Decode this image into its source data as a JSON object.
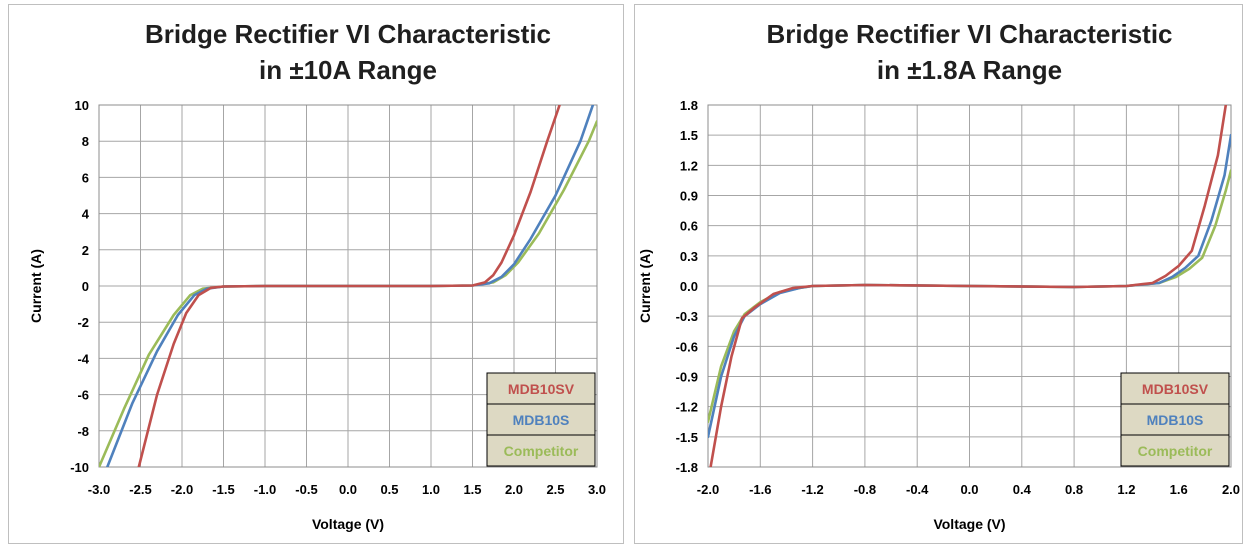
{
  "chart_data": [
    {
      "type": "line",
      "title": "Bridge Rectifier VI Characteristic",
      "subtitle": "in ±10A Range",
      "xlabel": "Voltage (V)",
      "ylabel": "Current (A)",
      "xlim": [
        -3.0,
        3.0
      ],
      "ylim": [
        -10,
        10
      ],
      "x_ticks": [
        -3.0,
        -2.5,
        -2.0,
        -1.5,
        -1.0,
        -0.5,
        0.0,
        0.5,
        1.0,
        1.5,
        2.0,
        2.5,
        3.0
      ],
      "y_ticks": [
        -10,
        -8,
        -6,
        -4,
        -2,
        0,
        2,
        4,
        6,
        8,
        10
      ],
      "x_tick_labels": [
        "-3.0",
        "-2.5",
        "-2.0",
        "-1.5",
        "-1.0",
        "-0.5",
        "0.0",
        "0.5",
        "1.0",
        "1.5",
        "2.0",
        "2.5",
        "3.0"
      ],
      "y_tick_labels": [
        "-10",
        "-8",
        "-6",
        "-4",
        "-2",
        "0",
        "2",
        "4",
        "6",
        "8",
        "10"
      ],
      "grid": true,
      "legend": "bottom-right",
      "series": [
        {
          "name": "MDB10SV",
          "color": "#c0504d",
          "x": [
            -2.52,
            -2.3,
            -2.1,
            -1.95,
            -1.8,
            -1.65,
            -1.5,
            -1.0,
            0.0,
            1.0,
            1.5,
            1.65,
            1.75,
            1.85,
            2.0,
            2.2,
            2.4,
            2.55
          ],
          "y": [
            -10,
            -6.0,
            -3.2,
            -1.5,
            -0.5,
            -0.1,
            -0.03,
            0,
            0,
            0,
            0.03,
            0.2,
            0.6,
            1.3,
            2.8,
            5.2,
            8.0,
            10
          ]
        },
        {
          "name": "MDB10S",
          "color": "#4f81bd",
          "x": [
            -2.9,
            -2.6,
            -2.3,
            -2.05,
            -1.85,
            -1.7,
            -1.5,
            -1.0,
            0.0,
            1.0,
            1.5,
            1.7,
            1.85,
            2.0,
            2.2,
            2.5,
            2.8,
            2.95
          ],
          "y": [
            -10,
            -6.5,
            -3.6,
            -1.6,
            -0.5,
            -0.15,
            -0.03,
            0,
            0,
            0,
            0.03,
            0.15,
            0.5,
            1.2,
            2.6,
            5.0,
            8.0,
            10
          ]
        },
        {
          "name": "Competitor",
          "color": "#9bbb59",
          "x": [
            -3.0,
            -2.7,
            -2.4,
            -2.1,
            -1.9,
            -1.75,
            -1.5,
            -1.0,
            0.0,
            1.0,
            1.5,
            1.75,
            1.9,
            2.05,
            2.3,
            2.6,
            2.9,
            3.0
          ],
          "y": [
            -10,
            -6.8,
            -3.8,
            -1.6,
            -0.5,
            -0.15,
            -0.03,
            0,
            0,
            0,
            0.03,
            0.2,
            0.6,
            1.3,
            2.9,
            5.3,
            8.0,
            9.1
          ]
        }
      ]
    },
    {
      "type": "line",
      "title": "Bridge Rectifier VI Characteristic",
      "subtitle": "in ±1.8A Range",
      "xlabel": "Voltage (V)",
      "ylabel": "Current (A)",
      "xlim": [
        -2.0,
        2.0
      ],
      "ylim": [
        -1.8,
        1.8
      ],
      "x_ticks": [
        -2.0,
        -1.6,
        -1.2,
        -0.8,
        -0.4,
        0.0,
        0.4,
        0.8,
        1.2,
        1.6,
        2.0
      ],
      "y_ticks": [
        -1.8,
        -1.5,
        -1.2,
        -0.9,
        -0.6,
        -0.3,
        0.0,
        0.3,
        0.6,
        0.9,
        1.2,
        1.5,
        1.8
      ],
      "x_tick_labels": [
        "-2.0",
        "-1.6",
        "-1.2",
        "-0.8",
        "-0.4",
        "0.0",
        "0.4",
        "0.8",
        "1.2",
        "1.6",
        "2.0"
      ],
      "y_tick_labels": [
        "-1.8",
        "-1.5",
        "-1.2",
        "-0.9",
        "-0.6",
        "-0.3",
        "0.0",
        "0.3",
        "0.6",
        "0.9",
        "1.2",
        "1.5",
        "1.8"
      ],
      "grid": true,
      "legend": "bottom-right",
      "series": [
        {
          "name": "MDB10SV",
          "color": "#c0504d",
          "x": [
            -1.98,
            -1.9,
            -1.82,
            -1.74,
            -1.65,
            -1.5,
            -1.35,
            -1.2,
            -0.8,
            0.0,
            0.8,
            1.2,
            1.4,
            1.5,
            1.6,
            1.7,
            1.8,
            1.9,
            1.96
          ],
          "y": [
            -1.8,
            -1.2,
            -0.7,
            -0.32,
            -0.22,
            -0.08,
            -0.02,
            0.0,
            0.01,
            0.0,
            -0.01,
            0.0,
            0.03,
            0.1,
            0.2,
            0.35,
            0.8,
            1.3,
            1.8
          ]
        },
        {
          "name": "MDB10S",
          "color": "#4f81bd",
          "x": [
            -2.0,
            -1.9,
            -1.8,
            -1.72,
            -1.6,
            -1.45,
            -1.3,
            -1.2,
            -0.8,
            0.0,
            0.8,
            1.2,
            1.45,
            1.55,
            1.65,
            1.75,
            1.85,
            1.95,
            2.0
          ],
          "y": [
            -1.5,
            -0.9,
            -0.5,
            -0.3,
            -0.18,
            -0.07,
            -0.02,
            0.0,
            0.01,
            0.0,
            -0.01,
            0.0,
            0.03,
            0.09,
            0.18,
            0.3,
            0.65,
            1.1,
            1.5
          ]
        },
        {
          "name": "Competitor",
          "color": "#9bbb59",
          "x": [
            -2.0,
            -1.9,
            -1.8,
            -1.72,
            -1.6,
            -1.45,
            -1.3,
            -1.2,
            -0.8,
            0.0,
            0.8,
            1.2,
            1.45,
            1.58,
            1.68,
            1.78,
            1.88,
            1.96,
            2.0
          ],
          "y": [
            -1.35,
            -0.8,
            -0.45,
            -0.28,
            -0.16,
            -0.06,
            -0.02,
            0.0,
            0.01,
            0.0,
            -0.01,
            0.0,
            0.03,
            0.09,
            0.17,
            0.28,
            0.6,
            0.95,
            1.15
          ]
        }
      ]
    }
  ]
}
